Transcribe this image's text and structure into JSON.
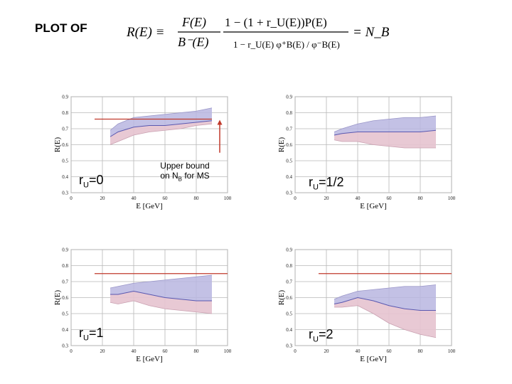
{
  "slide": {
    "title": "PLOT OF",
    "formula": {
      "lhs": "R(E) ≡",
      "frac1_num": "F(E)",
      "frac1_den": "B⁻(E)",
      "frac2_num": "1 − (1 + r_U(E))P(E)",
      "frac2_den": "1 − r_U(E) φ⁺B(E) / φ⁻B(E)",
      "rhs": "= N_B"
    },
    "annotation": {
      "line1": "Upper bound",
      "line2_pre": "on N",
      "line2_sub": "B",
      "line2_post": " for MS"
    }
  },
  "panels": [
    {
      "label_main": "r",
      "label_sub": "U",
      "label_value": "=0"
    },
    {
      "label_main": "r",
      "label_sub": "U",
      "label_value": "=1/2"
    },
    {
      "label_main": "r",
      "label_sub": "U",
      "label_value": "=1"
    },
    {
      "label_main": "r",
      "label_sub": "U",
      "label_value": "=2"
    }
  ],
  "chart_data": [
    {
      "type": "area",
      "title": "r_U=0",
      "xlabel": "E [GeV]",
      "ylabel": "R(E)",
      "xlim": [
        0,
        100
      ],
      "ylim": [
        0.3,
        0.9
      ],
      "xticks": [
        "0",
        "20",
        "40",
        "60",
        "80",
        "100"
      ],
      "yticks": [
        "0.3",
        "0.4",
        "0.5",
        "0.6",
        "0.7",
        "0.8",
        "0.9"
      ],
      "x": [
        25,
        30,
        40,
        50,
        60,
        70,
        80,
        90
      ],
      "upper": [
        0.69,
        0.73,
        0.77,
        0.78,
        0.79,
        0.8,
        0.81,
        0.83
      ],
      "lower": [
        0.6,
        0.62,
        0.66,
        0.68,
        0.69,
        0.7,
        0.72,
        0.73
      ],
      "central": [
        0.65,
        0.68,
        0.71,
        0.72,
        0.72,
        0.73,
        0.74,
        0.75
      ],
      "bound": 0.76,
      "bound_range": [
        15,
        90
      ],
      "arrow_x": 95
    },
    {
      "type": "area",
      "title": "r_U=1/2",
      "xlabel": "E [GeV]",
      "ylabel": "R(E)",
      "xlim": [
        0,
        100
      ],
      "ylim": [
        0.3,
        0.9
      ],
      "xticks": [
        "0",
        "20",
        "40",
        "60",
        "80",
        "100"
      ],
      "yticks": [
        "0.3",
        "0.4",
        "0.5",
        "0.6",
        "0.7",
        "0.8",
        "0.9"
      ],
      "x": [
        25,
        30,
        40,
        50,
        60,
        70,
        80,
        90
      ],
      "upper": [
        0.68,
        0.7,
        0.73,
        0.75,
        0.76,
        0.77,
        0.77,
        0.78
      ],
      "lower": [
        0.63,
        0.62,
        0.62,
        0.6,
        0.59,
        0.58,
        0.58,
        0.58
      ],
      "central": [
        0.66,
        0.67,
        0.68,
        0.68,
        0.68,
        0.68,
        0.68,
        0.69
      ],
      "bound": null
    },
    {
      "type": "area",
      "title": "r_U=1",
      "xlabel": "E [GeV]",
      "ylabel": "R(E)",
      "xlim": [
        0,
        100
      ],
      "ylim": [
        0.3,
        0.9
      ],
      "xticks": [
        "0",
        "20",
        "40",
        "60",
        "80",
        "100"
      ],
      "yticks": [
        "0.3",
        "0.4",
        "0.5",
        "0.6",
        "0.7",
        "0.8",
        "0.9"
      ],
      "x": [
        25,
        30,
        40,
        50,
        60,
        70,
        80,
        90
      ],
      "upper": [
        0.66,
        0.67,
        0.69,
        0.7,
        0.71,
        0.72,
        0.73,
        0.74
      ],
      "lower": [
        0.57,
        0.56,
        0.58,
        0.55,
        0.53,
        0.52,
        0.51,
        0.5
      ],
      "central": [
        0.62,
        0.62,
        0.64,
        0.62,
        0.6,
        0.59,
        0.58,
        0.58
      ],
      "bound": 0.75,
      "bound_range": [
        15,
        100
      ]
    },
    {
      "type": "area",
      "title": "r_U=2",
      "xlabel": "E [GeV]",
      "ylabel": "R(E)",
      "xlim": [
        0,
        100
      ],
      "ylim": [
        0.3,
        0.9
      ],
      "xticks": [
        "0",
        "20",
        "40",
        "60",
        "80",
        "100"
      ],
      "yticks": [
        "0.3",
        "0.4",
        "0.5",
        "0.6",
        "0.7",
        "0.8",
        "0.9"
      ],
      "x": [
        25,
        30,
        40,
        50,
        60,
        70,
        80,
        90
      ],
      "upper": [
        0.59,
        0.61,
        0.64,
        0.65,
        0.66,
        0.67,
        0.67,
        0.68
      ],
      "lower": [
        0.54,
        0.54,
        0.55,
        0.5,
        0.44,
        0.4,
        0.37,
        0.35
      ],
      "central": [
        0.56,
        0.57,
        0.6,
        0.58,
        0.55,
        0.53,
        0.52,
        0.52
      ],
      "bound": 0.75,
      "bound_range": [
        15,
        100
      ]
    }
  ]
}
